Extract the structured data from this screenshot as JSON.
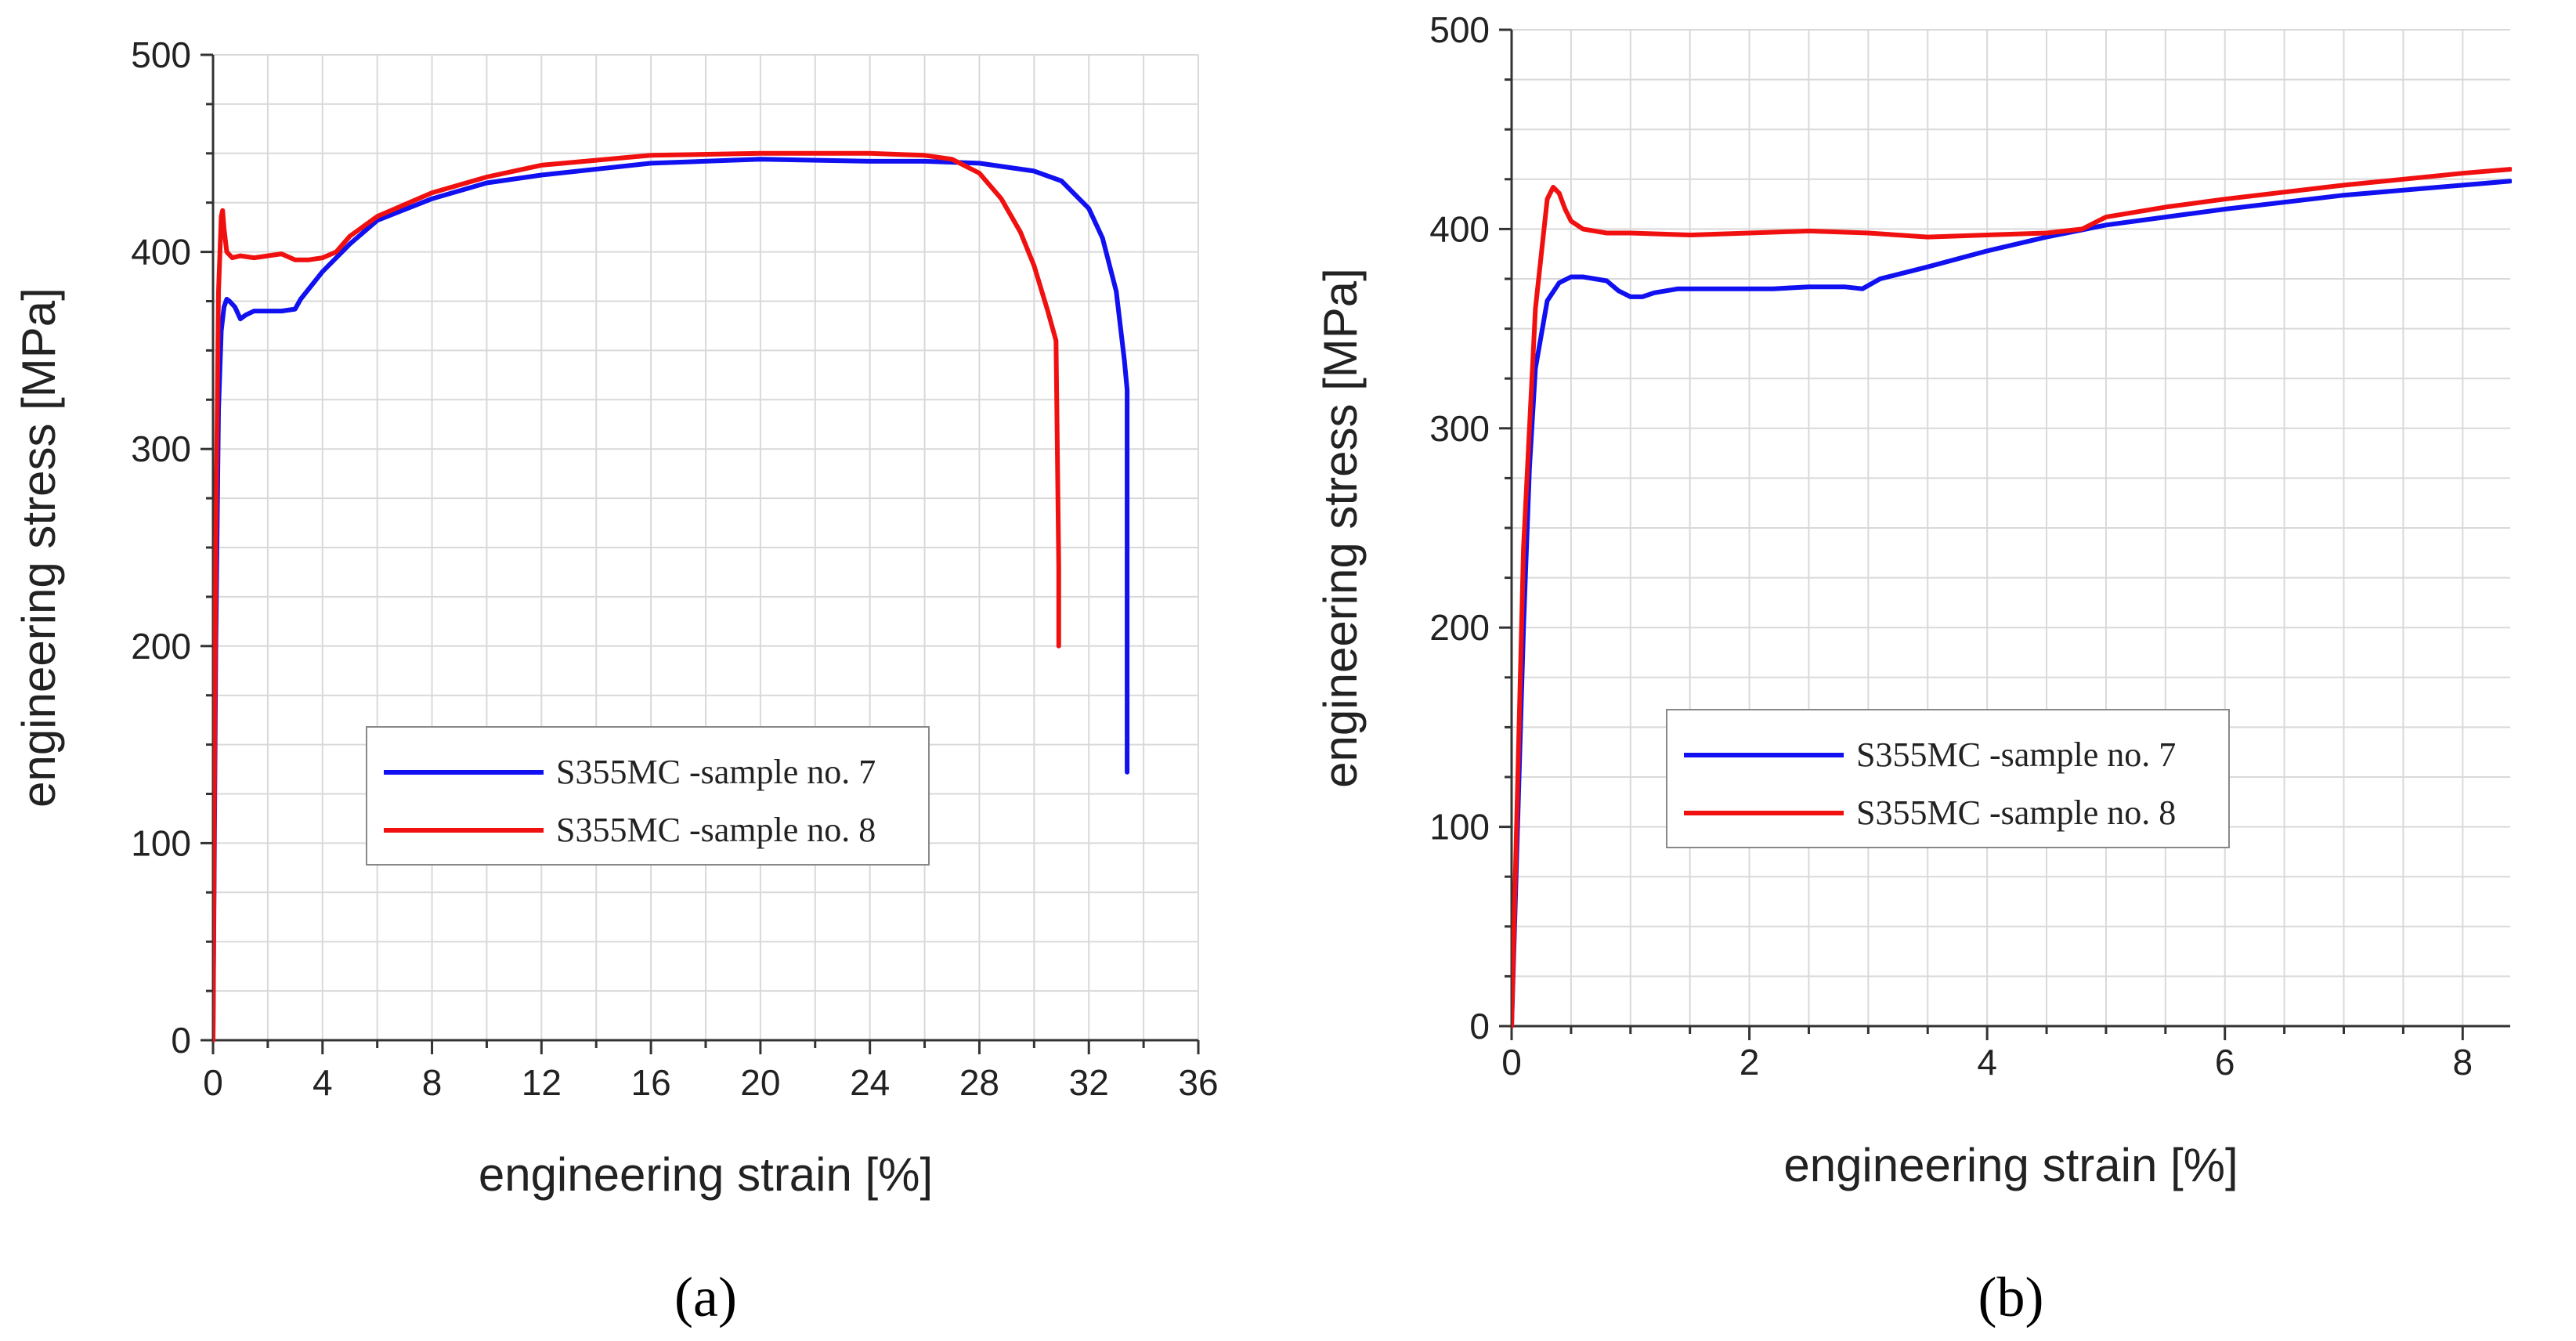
{
  "chart_data": [
    {
      "type": "line",
      "panel_label": "(a)",
      "xlabel": "engineering strain [%]",
      "ylabel": "engineering stress  [MPa]",
      "xlim": [
        0,
        36
      ],
      "ylim": [
        0,
        500
      ],
      "xticks": [
        "0",
        "4",
        "8",
        "12",
        "16",
        "20",
        "24",
        "28",
        "32",
        "36"
      ],
      "yticks": [
        "0",
        "100",
        "200",
        "300",
        "400",
        "500"
      ],
      "legend_position": "center-right",
      "series": [
        {
          "name": "S355MC -sample no. 7",
          "color": "#1010f0",
          "x": [
            0,
            0.1,
            0.2,
            0.3,
            0.4,
            0.5,
            0.6,
            0.8,
            1.0,
            1.2,
            1.5,
            2.0,
            2.5,
            3.0,
            3.2,
            4.0,
            5.0,
            6.0,
            8.0,
            10.0,
            12.0,
            16.0,
            20.0,
            24.0,
            26.0,
            28.0,
            29.0,
            30.0,
            31.0,
            32.0,
            32.5,
            33.0,
            33.3,
            33.4,
            33.4
          ],
          "y": [
            0,
            200,
            320,
            360,
            372,
            376,
            375,
            372,
            366,
            368,
            370,
            370,
            370,
            371,
            376,
            390,
            404,
            416,
            427,
            435,
            439,
            445,
            447,
            446,
            446,
            445,
            443,
            441,
            436,
            422,
            407,
            380,
            345,
            330,
            136
          ]
        },
        {
          "name": "S355MC -sample no. 8",
          "color": "#f01010",
          "x": [
            0,
            0.1,
            0.2,
            0.3,
            0.35,
            0.4,
            0.5,
            0.7,
            1.0,
            1.5,
            2.0,
            2.5,
            3.0,
            3.5,
            4.0,
            4.5,
            5.0,
            6.0,
            8.0,
            10.0,
            12.0,
            16.0,
            20.0,
            24.0,
            26.0,
            27.0,
            28.0,
            28.8,
            29.5,
            30.0,
            30.5,
            30.8,
            30.85,
            30.9,
            30.9
          ],
          "y": [
            0,
            250,
            380,
            418,
            421,
            412,
            400,
            397,
            398,
            397,
            398,
            399,
            396,
            396,
            397,
            400,
            408,
            418,
            430,
            438,
            444,
            449,
            450,
            450,
            449,
            447,
            440,
            427,
            410,
            393,
            370,
            355,
            300,
            240,
            200
          ]
        }
      ]
    },
    {
      "type": "line",
      "panel_label": "(b)",
      "xlabel": "engineering strain [%]",
      "ylabel": "engineering stress  [MPa]",
      "xlim": [
        0,
        8.4
      ],
      "ylim": [
        0,
        500
      ],
      "xticks": [
        "0",
        "2",
        "4",
        "6",
        "8"
      ],
      "yticks": [
        "0",
        "100",
        "200",
        "300",
        "400",
        "500"
      ],
      "legend_position": "center-right",
      "series": [
        {
          "name": "S355MC -sample no. 7",
          "color": "#1010f0",
          "x": [
            0,
            0.1,
            0.15,
            0.2,
            0.3,
            0.4,
            0.5,
            0.6,
            0.7,
            0.8,
            0.9,
            1.0,
            1.1,
            1.2,
            1.4,
            1.6,
            1.8,
            2.0,
            2.2,
            2.5,
            2.8,
            2.95,
            3.1,
            3.5,
            4.0,
            4.5,
            5.0,
            5.5,
            6.0,
            7.0,
            8.0,
            8.4
          ],
          "y": [
            0,
            200,
            280,
            330,
            364,
            373,
            376,
            376,
            375,
            374,
            369,
            366,
            366,
            368,
            370,
            370,
            370,
            370,
            370,
            371,
            371,
            370,
            375,
            381,
            389,
            396,
            402,
            406,
            410,
            417,
            422,
            424
          ]
        },
        {
          "name": "S355MC -sample no. 8",
          "color": "#f01010",
          "x": [
            0,
            0.1,
            0.2,
            0.3,
            0.35,
            0.4,
            0.45,
            0.5,
            0.6,
            0.8,
            1.0,
            1.5,
            2.0,
            2.5,
            3.0,
            3.5,
            4.0,
            4.5,
            4.8,
            5.0,
            5.5,
            6.0,
            7.0,
            8.0,
            8.4
          ],
          "y": [
            0,
            240,
            360,
            415,
            421,
            418,
            410,
            404,
            400,
            398,
            398,
            397,
            398,
            399,
            398,
            396,
            397,
            398,
            400,
            406,
            411,
            415,
            422,
            428,
            430
          ]
        }
      ]
    }
  ]
}
